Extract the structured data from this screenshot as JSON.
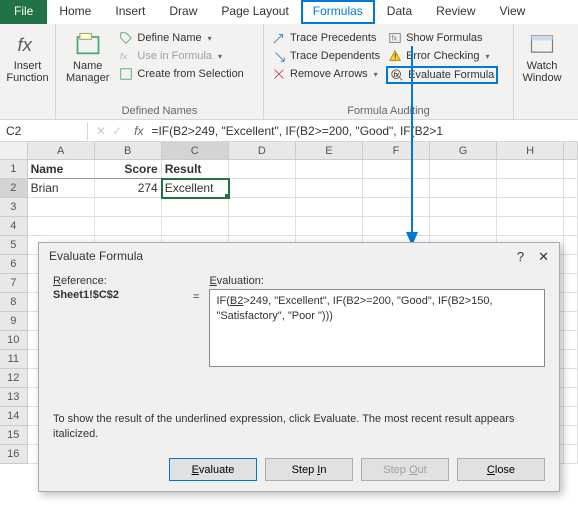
{
  "tabs": {
    "file": "File",
    "home": "Home",
    "insert": "Insert",
    "draw": "Draw",
    "pagelayout": "Page Layout",
    "formulas": "Formulas",
    "data": "Data",
    "review": "Review",
    "view": "View"
  },
  "ribbon": {
    "insert_function": "Insert\nFunction",
    "name_manager": "Name\nManager",
    "define_name": "Define Name",
    "use_in_formula": "Use in Formula",
    "create_from_selection": "Create from Selection",
    "defined_names": "Defined Names",
    "trace_precedents": "Trace Precedents",
    "trace_dependents": "Trace Dependents",
    "remove_arrows": "Remove Arrows",
    "show_formulas": "Show Formulas",
    "error_checking": "Error Checking",
    "evaluate_formula": "Evaluate Formula",
    "formula_auditing": "Formula Auditing",
    "watch_window": "Watch\nWindow"
  },
  "namebox": "C2",
  "formula_bar": "=IF(B2>249, \"Excellent\", IF(B2>=200, \"Good\", IF(B2>1",
  "cols": {
    "widths": [
      68,
      68,
      68,
      68,
      68,
      68,
      68,
      68,
      14
    ],
    "labels": [
      "A",
      "B",
      "C",
      "D",
      "E",
      "F",
      "G",
      "H",
      ""
    ]
  },
  "sheet": {
    "r1": {
      "A": "Name",
      "B": "Score",
      "C": "Result"
    },
    "r2": {
      "A": "Brian",
      "B": "274",
      "C": "Excellent"
    }
  },
  "dialog": {
    "title": "Evaluate Formula",
    "ref_label": "Reference:",
    "ref_value": "Sheet1!$C$2",
    "eval_label": "Evaluation:",
    "eval_text_prefix": "IF(",
    "eval_text_underlined": "B2",
    "eval_text_rest": ">249, \"Excellent\", IF(B2>=200, \"Good\", IF(B2>150, \"Satisfactory\", \"Poor \")))",
    "msg": "To show the result of the underlined expression, click Evaluate.  The most recent result appears italicized.",
    "btn_evaluate": "Evaluate",
    "btn_stepin": "Step In",
    "btn_stepout": "Step Out",
    "btn_close": "Close"
  },
  "colors": {
    "accent": "#0078d4",
    "excel_green": "#217346"
  }
}
